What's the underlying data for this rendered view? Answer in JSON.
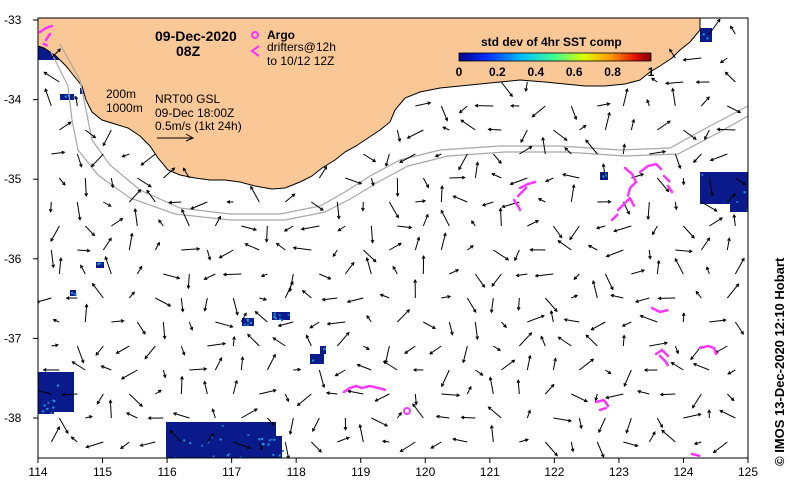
{
  "map": {
    "date": "09-Dec-2020",
    "time": "08Z",
    "argo_label": "Argo",
    "drifters_label": "drifters@12h",
    "drifters_to_label": "to 10/12 12Z",
    "depth_200": "200m",
    "depth_1000": "1000m",
    "current_product": "NRT00 GSL",
    "current_time": "09-Dec 18:00Z",
    "scale_label": "0.5m/s (1kt 24h)",
    "colorbar_title": "std dev of 4hr SST comp",
    "colorbar_ticks": [
      "0",
      "0.2",
      "0.4",
      "0.6",
      "0.8",
      "1"
    ],
    "credit": "© IMOS 13-Dec-2020 12:10 Hobart",
    "x_ticks": [
      "114",
      "115",
      "116",
      "117",
      "118",
      "119",
      "120",
      "121",
      "122",
      "123",
      "124",
      "125"
    ],
    "y_ticks": [
      "-33",
      "-34",
      "-35",
      "-36",
      "-37",
      "-38"
    ],
    "colors": {
      "land": "#f9c896",
      "coast": "#000000",
      "isobath": "#a8a8a8",
      "drifter": "#ff33ff",
      "sst_low": "#0a1a8a",
      "sst_mid": "#1f6fd0"
    }
  }
}
